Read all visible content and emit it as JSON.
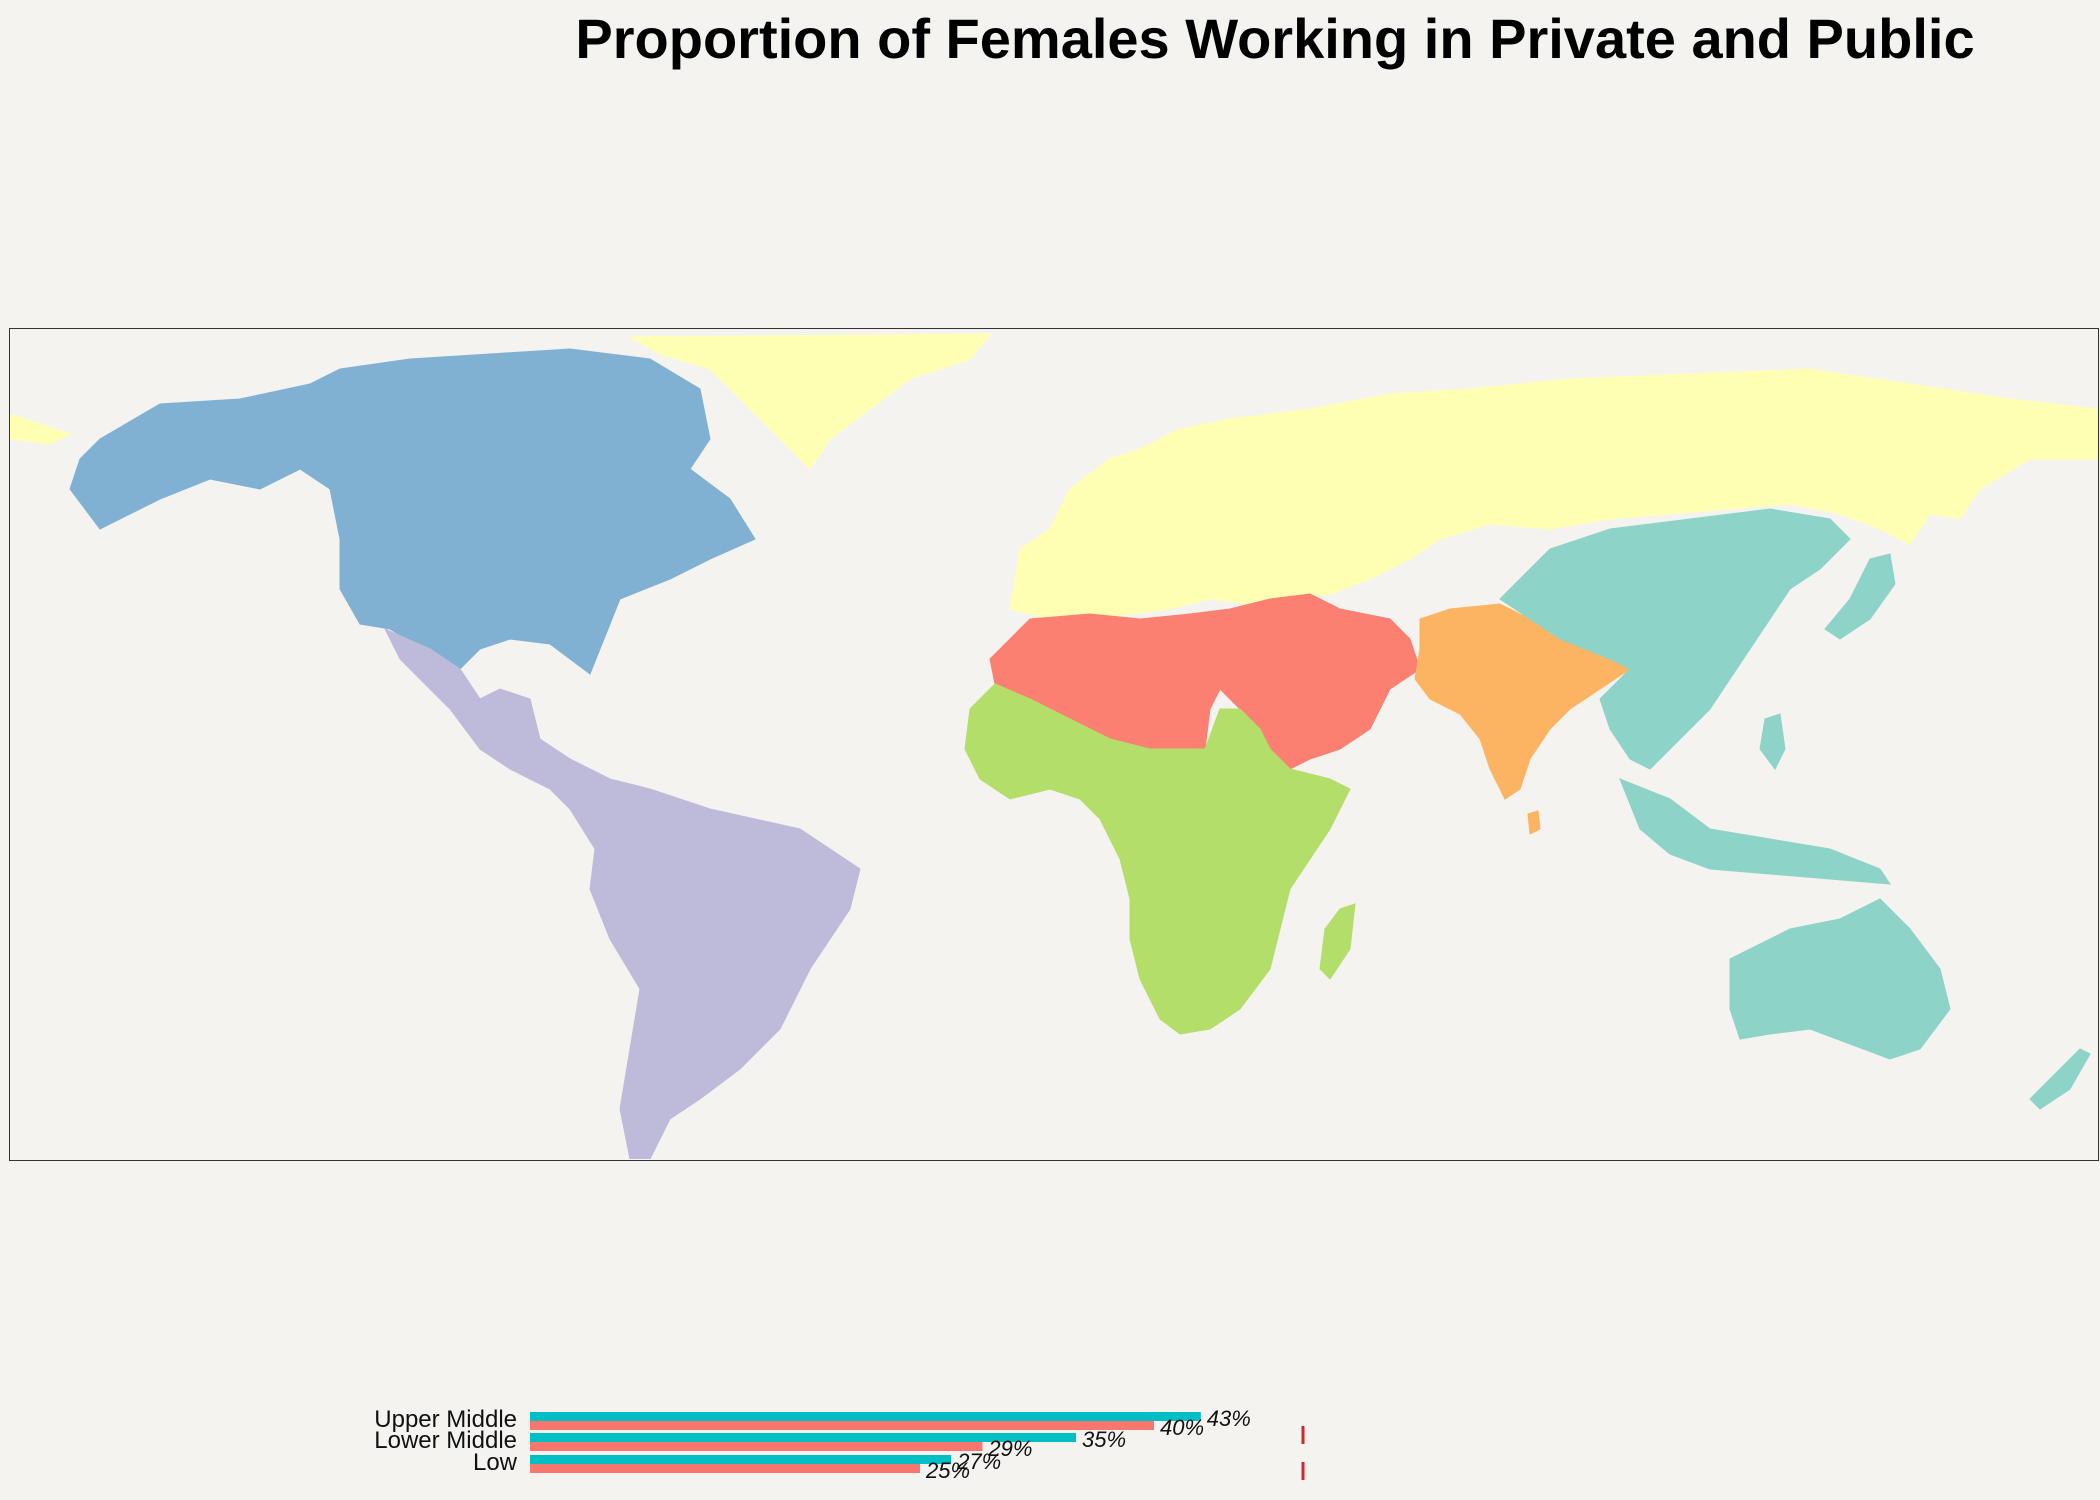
{
  "title": "Proportion of Females Working in Private and Public",
  "map": {
    "regions": [
      {
        "name": "North America",
        "color": "#80b1d3"
      },
      {
        "name": "Latin America & Caribbean",
        "color": "#bebada"
      },
      {
        "name": "Europe & Central Asia",
        "color": "#ffffb3"
      },
      {
        "name": "Middle East & North Africa",
        "color": "#fb8072"
      },
      {
        "name": "Sub-Saharan Africa",
        "color": "#b3de69"
      },
      {
        "name": "South Asia",
        "color": "#fdb462"
      },
      {
        "name": "East Asia & Pacific",
        "color": "#8dd3c7"
      }
    ]
  },
  "chart_data": {
    "type": "bar",
    "orientation": "horizontal",
    "categories": [
      "Upper Middle",
      "Lower Middle",
      "Low"
    ],
    "series": [
      {
        "color": "#00bfc4",
        "values": [
          43,
          35,
          27
        ]
      },
      {
        "color": "#f8766d",
        "values": [
          40,
          29,
          25
        ]
      }
    ],
    "value_labels": {
      "Upper Middle": [
        "43%",
        "40%"
      ],
      "Lower Middle": [
        "35%",
        "29%"
      ],
      "Low": [
        "27%",
        "25%"
      ]
    },
    "xlim": [
      0,
      100
    ],
    "reference_line_color": "#d62728"
  }
}
